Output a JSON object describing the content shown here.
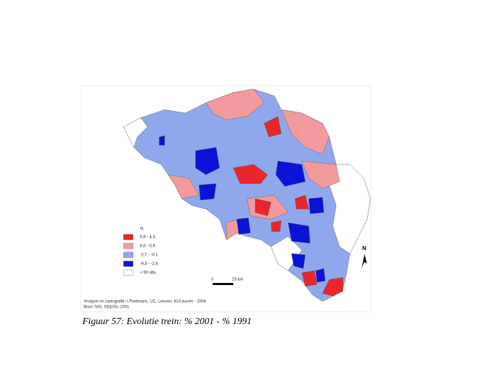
{
  "map": {
    "caption": "Figuur 57: Evolutie trein: % 2001 - % 1991",
    "credits": [
      "Analyse en cartografie: I.Poelmans, UC, Leuven, KULeuven - 2006",
      "Bron: NIS, SEE/GL-2001"
    ],
    "legend": {
      "title": "%",
      "items": [
        {
          "label": "0,9 - 4,3",
          "color": "#e8262b"
        },
        {
          "label": "0,0 - 0,9",
          "color": "#f29a9e"
        },
        {
          "label": "-2,7 - -0,1",
          "color": "#8fa8ec"
        },
        {
          "label": "-9,3 - -2,8",
          "color": "#0a14d6"
        },
        {
          "label": "< 50 obs.",
          "color": "#ffffff"
        }
      ]
    },
    "scale_bar": {
      "start": "0",
      "end": "25 km"
    },
    "north": "N"
  }
}
